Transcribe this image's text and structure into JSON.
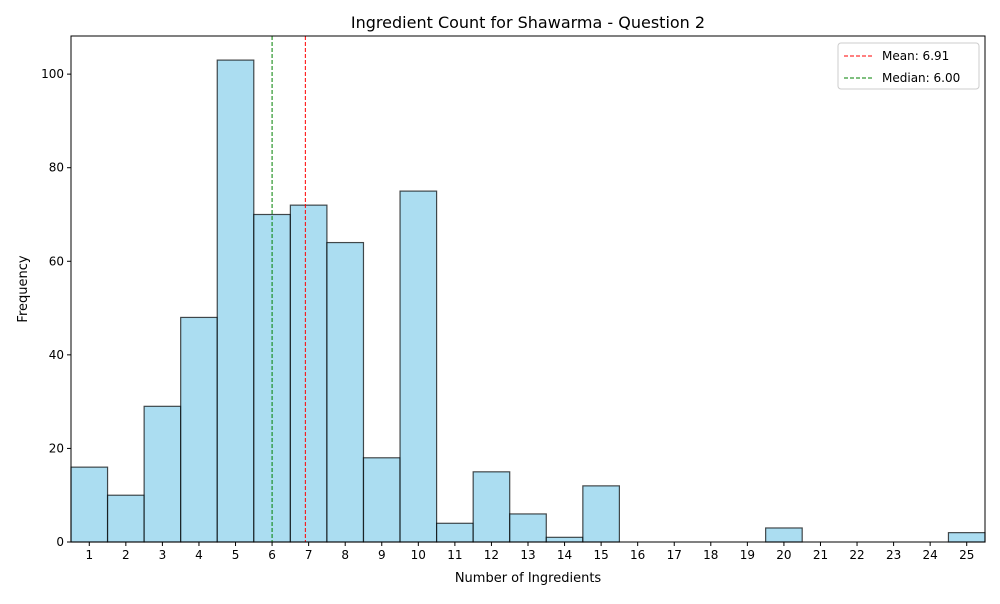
{
  "chart_data": {
    "type": "bar",
    "title": "Ingredient Count for Shawarma - Question 2",
    "xlabel": "Number of Ingredients",
    "ylabel": "Frequency",
    "categories": [
      1,
      2,
      3,
      4,
      5,
      6,
      7,
      8,
      9,
      10,
      11,
      12,
      13,
      14,
      15,
      16,
      17,
      18,
      19,
      20,
      21,
      22,
      23,
      24,
      25
    ],
    "values": [
      16,
      10,
      29,
      48,
      103,
      70,
      72,
      64,
      18,
      75,
      4,
      15,
      6,
      1,
      12,
      0,
      0,
      0,
      0,
      3,
      0,
      0,
      0,
      0,
      2
    ],
    "xlim": [
      0.5,
      25.5
    ],
    "ylim": [
      0,
      108.15
    ],
    "yticks": [
      0,
      20,
      40,
      60,
      80,
      100
    ],
    "bar_color": "#87ceeb",
    "bar_edge_color": "#000000",
    "grid": false,
    "legend_position": "top-right",
    "reference_lines": [
      {
        "label": "Mean: 6.91",
        "value": 6.91,
        "color": "#ff0000",
        "style": "dashed"
      },
      {
        "label": "Median: 6.00",
        "value": 6.0,
        "color": "#008000",
        "style": "dashed"
      }
    ]
  }
}
